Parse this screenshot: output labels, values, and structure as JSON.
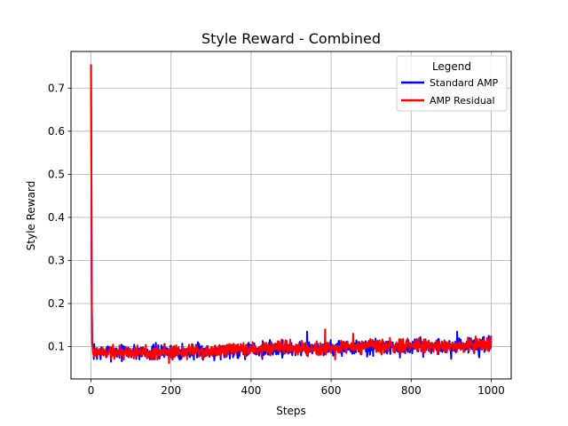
{
  "chart_data": {
    "type": "line",
    "title": "Style Reward - Combined",
    "xlabel": "Steps",
    "ylabel": "Style Reward",
    "xlim": [
      -50,
      1050
    ],
    "ylim": [
      0.025,
      0.785
    ],
    "xticks": [
      0,
      200,
      400,
      600,
      800,
      1000
    ],
    "yticks": [
      0.1,
      0.2,
      0.3,
      0.4,
      0.5,
      0.6,
      0.7
    ],
    "grid": true,
    "legend": {
      "title": "Legend",
      "placement": "top-right"
    },
    "series": [
      {
        "name": "Standard AMP",
        "color": "#0000ff",
        "trend": {
          "x": [
            0,
            1,
            2,
            3,
            5,
            10,
            50,
            100,
            200,
            300,
            400,
            500,
            600,
            700,
            800,
            900,
            1000
          ],
          "y": [
            0.755,
            0.5,
            0.2,
            0.11,
            0.092,
            0.086,
            0.088,
            0.087,
            0.088,
            0.089,
            0.093,
            0.095,
            0.097,
            0.098,
            0.1,
            0.101,
            0.103
          ]
        },
        "noise_amplitude": 0.009,
        "noise_seed": 7,
        "spikes": [
          {
            "x": 540,
            "y": 0.135
          },
          {
            "x": 915,
            "y": 0.135
          },
          {
            "x": 900,
            "y": 0.072
          },
          {
            "x": 970,
            "y": 0.075
          }
        ]
      },
      {
        "name": "AMP Residual",
        "color": "#ff0000",
        "trend": {
          "x": [
            0,
            1,
            2,
            3,
            5,
            10,
            50,
            100,
            200,
            300,
            400,
            500,
            600,
            700,
            800,
            900,
            1000
          ],
          "y": [
            0.755,
            0.5,
            0.2,
            0.11,
            0.09,
            0.087,
            0.087,
            0.087,
            0.088,
            0.09,
            0.094,
            0.097,
            0.099,
            0.1,
            0.101,
            0.103,
            0.106
          ]
        },
        "noise_amplitude": 0.008,
        "noise_seed": 19,
        "spikes": [
          {
            "x": 195,
            "y": 0.062
          },
          {
            "x": 585,
            "y": 0.14
          },
          {
            "x": 610,
            "y": 0.07
          },
          {
            "x": 655,
            "y": 0.13
          }
        ]
      }
    ]
  }
}
